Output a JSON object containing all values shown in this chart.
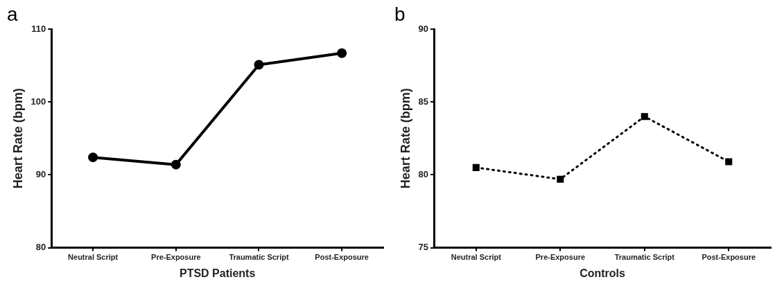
{
  "chart_data": [
    {
      "type": "line",
      "annotations": [
        "a"
      ],
      "xlabel": "PTSD Patients",
      "ylabel": "Heart Rate (bpm)",
      "categories": [
        "Neutral Script",
        "Pre-Exposure",
        "Traumatic Script",
        "Post-Exposure"
      ],
      "values": [
        92.4,
        91.4,
        105.1,
        106.7
      ],
      "color": "#000000",
      "marker": "circle",
      "line_style": "solid",
      "ylim": [
        80,
        110
      ],
      "yticks": [
        80,
        90,
        100,
        110
      ],
      "grid": false,
      "legend": false
    },
    {
      "type": "line",
      "annotations": [
        "b"
      ],
      "xlabel": "Controls",
      "ylabel": "Heart Rate (bpm)",
      "categories": [
        "Neutral Script",
        "Pre-Exposure",
        "Traumatic Script",
        "Post-Exposure"
      ],
      "values": [
        80.5,
        79.7,
        84.0,
        80.9
      ],
      "color": "#000000",
      "marker": "square",
      "line_style": "dotted",
      "ylim": [
        75,
        90
      ],
      "yticks": [
        75,
        80,
        85,
        90
      ],
      "grid": false,
      "legend": false
    }
  ]
}
